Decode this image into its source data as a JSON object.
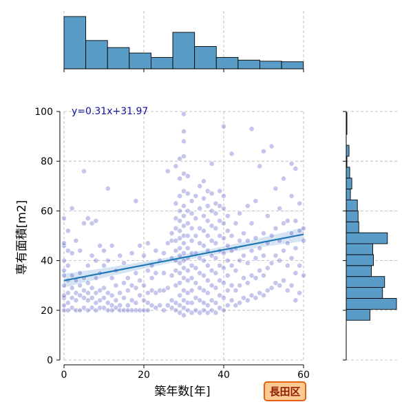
{
  "chart_data": {
    "type": "scatter",
    "regression_label": "y=0.31x+31.97",
    "regression": {
      "slope": 0.31,
      "intercept": 31.97,
      "x_range": [
        0,
        60
      ]
    },
    "xlabel": "築年数[年]",
    "ylabel": "専有面積[m2]",
    "xlim": [
      0,
      60
    ],
    "ylim": [
      0,
      100
    ],
    "x_ticks": [
      "0",
      "20",
      "40",
      "60"
    ],
    "y_ticks": [
      "0",
      "20",
      "40",
      "60",
      "80",
      "100"
    ],
    "grid": true,
    "badge": "長田区",
    "colors": {
      "point": "#4b4fc0",
      "line": "#1f77b4",
      "hist": "#5a9cc8",
      "band": "#c6dbef",
      "badge_fill": "#ffc992",
      "badge_border": "#e06010",
      "badge_text": "#8b1a00",
      "reg_text": "#1010a0"
    },
    "marginal_x": {
      "bin_width": 5.45,
      "counts": [
        96,
        52,
        39,
        29,
        21,
        67,
        41,
        21,
        16,
        14,
        13
      ]
    },
    "marginal_y": {
      "bin_width": 4.4,
      "bin_start": 16,
      "counts": [
        34,
        72,
        52,
        55,
        36,
        39,
        38,
        59,
        18,
        17,
        16,
        6,
        8,
        5,
        1,
        4,
        0,
        1,
        1
      ]
    },
    "points": [
      [
        0,
        20
      ],
      [
        0,
        22
      ],
      [
        0,
        25
      ],
      [
        0,
        26
      ],
      [
        0,
        30
      ],
      [
        0,
        34
      ],
      [
        0,
        36
      ],
      [
        0,
        40
      ],
      [
        0,
        46
      ],
      [
        0,
        47
      ],
      [
        0,
        57
      ],
      [
        1,
        20
      ],
      [
        1,
        23
      ],
      [
        1,
        27
      ],
      [
        1,
        32
      ],
      [
        1,
        38
      ],
      [
        1,
        44
      ],
      [
        1,
        52
      ],
      [
        2,
        21
      ],
      [
        2,
        25
      ],
      [
        2,
        29
      ],
      [
        2,
        34
      ],
      [
        2,
        43
      ],
      [
        2,
        61
      ],
      [
        3,
        20
      ],
      [
        3,
        24
      ],
      [
        3,
        27
      ],
      [
        3,
        32
      ],
      [
        3,
        48
      ],
      [
        4,
        20
      ],
      [
        4,
        26
      ],
      [
        4,
        30
      ],
      [
        4,
        35
      ],
      [
        4,
        44
      ],
      [
        5,
        21
      ],
      [
        5,
        25
      ],
      [
        5,
        28
      ],
      [
        5,
        33
      ],
      [
        5,
        55
      ],
      [
        5,
        76
      ],
      [
        6,
        20
      ],
      [
        6,
        24
      ],
      [
        6,
        27
      ],
      [
        6,
        31
      ],
      [
        6,
        38
      ],
      [
        6,
        57
      ],
      [
        7,
        21
      ],
      [
        7,
        25
      ],
      [
        7,
        29
      ],
      [
        7,
        42
      ],
      [
        7,
        55
      ],
      [
        8,
        20
      ],
      [
        8,
        23
      ],
      [
        8,
        27
      ],
      [
        8,
        33
      ],
      [
        8,
        40
      ],
      [
        8,
        56
      ],
      [
        9,
        21
      ],
      [
        9,
        24
      ],
      [
        9,
        28
      ],
      [
        9,
        35
      ],
      [
        9,
        46
      ],
      [
        10,
        21
      ],
      [
        10,
        25
      ],
      [
        10,
        29
      ],
      [
        10,
        38
      ],
      [
        10,
        44
      ],
      [
        11,
        20
      ],
      [
        11,
        23
      ],
      [
        11,
        27
      ],
      [
        11,
        40
      ],
      [
        11,
        69
      ],
      [
        12,
        20
      ],
      [
        12,
        22
      ],
      [
        12,
        26
      ],
      [
        12,
        33
      ],
      [
        12,
        46
      ],
      [
        13,
        21
      ],
      [
        13,
        24
      ],
      [
        13,
        30
      ],
      [
        13,
        36
      ],
      [
        14,
        20
      ],
      [
        14,
        22
      ],
      [
        14,
        27
      ],
      [
        14,
        42
      ],
      [
        15,
        20
      ],
      [
        15,
        25
      ],
      [
        15,
        31
      ],
      [
        15,
        39
      ],
      [
        16,
        20
      ],
      [
        16,
        22
      ],
      [
        16,
        28
      ],
      [
        16,
        33
      ],
      [
        17,
        20
      ],
      [
        17,
        24
      ],
      [
        17,
        30
      ],
      [
        17,
        43
      ],
      [
        18,
        20
      ],
      [
        18,
        23
      ],
      [
        18,
        29
      ],
      [
        18,
        35
      ],
      [
        18,
        64
      ],
      [
        19,
        20
      ],
      [
        19,
        26
      ],
      [
        19,
        32
      ],
      [
        19,
        46
      ],
      [
        20,
        20
      ],
      [
        20,
        24
      ],
      [
        20,
        30
      ],
      [
        20,
        42
      ],
      [
        21,
        20
      ],
      [
        21,
        23
      ],
      [
        21,
        27
      ],
      [
        21,
        36
      ],
      [
        21,
        47
      ],
      [
        22,
        22
      ],
      [
        22,
        28
      ],
      [
        22,
        33
      ],
      [
        22,
        38
      ],
      [
        23,
        21
      ],
      [
        23,
        27
      ],
      [
        23,
        35
      ],
      [
        23,
        44
      ],
      [
        24,
        22
      ],
      [
        24,
        28
      ],
      [
        24,
        40
      ],
      [
        25,
        20
      ],
      [
        25,
        28
      ],
      [
        25,
        35
      ],
      [
        25,
        43
      ],
      [
        26,
        22
      ],
      [
        26,
        29
      ],
      [
        26,
        47
      ],
      [
        26,
        76
      ],
      [
        27,
        21
      ],
      [
        27,
        24
      ],
      [
        27,
        34
      ],
      [
        27,
        41
      ],
      [
        27,
        48
      ],
      [
        27,
        51
      ],
      [
        28,
        20
      ],
      [
        28,
        23
      ],
      [
        28,
        30
      ],
      [
        28,
        36
      ],
      [
        28,
        40
      ],
      [
        28,
        44
      ],
      [
        28,
        48
      ],
      [
        28,
        53
      ],
      [
        28,
        57
      ],
      [
        28,
        63
      ],
      [
        28,
        78
      ],
      [
        29,
        19
      ],
      [
        29,
        22
      ],
      [
        29,
        26
      ],
      [
        29,
        31
      ],
      [
        29,
        35
      ],
      [
        29,
        39
      ],
      [
        29,
        42
      ],
      [
        29,
        45
      ],
      [
        29,
        49
      ],
      [
        29,
        52
      ],
      [
        29,
        56
      ],
      [
        29,
        60
      ],
      [
        29,
        66
      ],
      [
        29,
        73
      ],
      [
        29,
        81
      ],
      [
        30,
        18
      ],
      [
        30,
        21
      ],
      [
        30,
        24
      ],
      [
        30,
        28
      ],
      [
        30,
        33
      ],
      [
        30,
        37
      ],
      [
        30,
        40
      ],
      [
        30,
        43
      ],
      [
        30,
        47
      ],
      [
        30,
        50
      ],
      [
        30,
        54
      ],
      [
        30,
        58
      ],
      [
        30,
        62
      ],
      [
        30,
        68
      ],
      [
        30,
        75
      ],
      [
        30,
        82
      ],
      [
        30,
        88
      ],
      [
        30,
        92
      ],
      [
        30,
        99
      ],
      [
        31,
        20
      ],
      [
        31,
        23
      ],
      [
        31,
        27
      ],
      [
        31,
        32
      ],
      [
        31,
        36
      ],
      [
        31,
        41
      ],
      [
        31,
        45
      ],
      [
        31,
        50
      ],
      [
        31,
        55
      ],
      [
        31,
        60
      ],
      [
        31,
        67
      ],
      [
        31,
        74
      ],
      [
        32,
        19
      ],
      [
        32,
        23
      ],
      [
        32,
        28
      ],
      [
        32,
        33
      ],
      [
        32,
        38
      ],
      [
        32,
        43
      ],
      [
        32,
        48
      ],
      [
        32,
        53
      ],
      [
        32,
        59
      ],
      [
        32,
        64
      ],
      [
        33,
        20
      ],
      [
        33,
        25
      ],
      [
        33,
        31
      ],
      [
        33,
        37
      ],
      [
        33,
        43
      ],
      [
        33,
        50
      ],
      [
        33,
        57
      ],
      [
        33,
        66
      ],
      [
        34,
        19
      ],
      [
        34,
        24
      ],
      [
        34,
        29
      ],
      [
        34,
        35
      ],
      [
        34,
        41
      ],
      [
        34,
        47
      ],
      [
        34,
        53
      ],
      [
        34,
        61
      ],
      [
        34,
        70
      ],
      [
        35,
        20
      ],
      [
        35,
        23
      ],
      [
        35,
        28
      ],
      [
        35,
        34
      ],
      [
        35,
        40
      ],
      [
        35,
        46
      ],
      [
        35,
        52
      ],
      [
        35,
        58
      ],
      [
        35,
        65
      ],
      [
        35,
        72
      ],
      [
        36,
        19
      ],
      [
        36,
        22
      ],
      [
        36,
        27
      ],
      [
        36,
        32
      ],
      [
        36,
        38
      ],
      [
        36,
        44
      ],
      [
        36,
        50
      ],
      [
        36,
        56
      ],
      [
        36,
        62
      ],
      [
        36,
        68
      ],
      [
        37,
        20
      ],
      [
        37,
        24
      ],
      [
        37,
        30
      ],
      [
        37,
        36
      ],
      [
        37,
        42
      ],
      [
        37,
        48
      ],
      [
        37,
        54
      ],
      [
        37,
        60
      ],
      [
        37,
        67
      ],
      [
        37,
        79
      ],
      [
        38,
        19
      ],
      [
        38,
        23
      ],
      [
        38,
        29
      ],
      [
        38,
        35
      ],
      [
        38,
        41
      ],
      [
        38,
        47
      ],
      [
        38,
        53
      ],
      [
        38,
        59
      ],
      [
        38,
        63
      ],
      [
        39,
        21
      ],
      [
        39,
        26
      ],
      [
        39,
        32
      ],
      [
        39,
        38
      ],
      [
        39,
        44
      ],
      [
        39,
        50
      ],
      [
        39,
        56
      ],
      [
        39,
        62
      ],
      [
        39,
        68
      ],
      [
        40,
        20
      ],
      [
        40,
        25
      ],
      [
        40,
        31
      ],
      [
        40,
        37
      ],
      [
        40,
        43
      ],
      [
        40,
        49
      ],
      [
        40,
        55
      ],
      [
        40,
        61
      ],
      [
        40,
        66
      ],
      [
        40,
        94
      ],
      [
        41,
        22
      ],
      [
        41,
        28
      ],
      [
        41,
        34
      ],
      [
        41,
        40
      ],
      [
        41,
        46
      ],
      [
        41,
        52
      ],
      [
        41,
        58
      ],
      [
        42,
        24
      ],
      [
        42,
        30
      ],
      [
        42,
        38
      ],
      [
        42,
        44
      ],
      [
        42,
        50
      ],
      [
        42,
        83
      ],
      [
        43,
        22
      ],
      [
        43,
        28
      ],
      [
        43,
        36
      ],
      [
        43,
        45
      ],
      [
        43,
        55
      ],
      [
        44,
        23
      ],
      [
        44,
        30
      ],
      [
        44,
        40
      ],
      [
        44,
        48
      ],
      [
        44,
        59
      ],
      [
        45,
        25
      ],
      [
        45,
        33
      ],
      [
        45,
        42
      ],
      [
        45,
        51
      ],
      [
        46,
        24
      ],
      [
        46,
        31
      ],
      [
        46,
        39
      ],
      [
        46,
        48
      ],
      [
        46,
        62
      ],
      [
        47,
        26
      ],
      [
        47,
        34
      ],
      [
        47,
        44
      ],
      [
        47,
        55
      ],
      [
        47,
        93
      ],
      [
        48,
        25
      ],
      [
        48,
        33
      ],
      [
        48,
        41
      ],
      [
        48,
        49
      ],
      [
        48,
        64
      ],
      [
        49,
        27
      ],
      [
        49,
        36
      ],
      [
        49,
        45
      ],
      [
        49,
        78
      ],
      [
        50,
        26
      ],
      [
        50,
        34
      ],
      [
        50,
        42
      ],
      [
        50,
        51
      ],
      [
        50,
        84
      ],
      [
        51,
        28
      ],
      [
        51,
        37
      ],
      [
        51,
        47
      ],
      [
        51,
        58
      ],
      [
        52,
        29
      ],
      [
        52,
        39
      ],
      [
        52,
        50
      ],
      [
        52,
        86
      ],
      [
        53,
        31
      ],
      [
        53,
        42
      ],
      [
        53,
        53
      ],
      [
        53,
        69
      ],
      [
        54,
        30
      ],
      [
        54,
        40
      ],
      [
        54,
        48
      ],
      [
        54,
        61
      ],
      [
        55,
        32
      ],
      [
        55,
        44
      ],
      [
        55,
        55
      ],
      [
        55,
        73
      ],
      [
        56,
        28
      ],
      [
        56,
        38
      ],
      [
        56,
        47
      ],
      [
        56,
        56
      ],
      [
        57,
        30
      ],
      [
        57,
        41
      ],
      [
        57,
        51
      ],
      [
        57,
        66
      ],
      [
        57,
        79
      ],
      [
        58,
        24
      ],
      [
        58,
        35
      ],
      [
        58,
        45
      ],
      [
        58,
        56
      ],
      [
        58,
        77
      ],
      [
        59,
        27
      ],
      [
        59,
        38
      ],
      [
        59,
        52
      ],
      [
        59,
        63
      ],
      [
        60,
        34
      ],
      [
        60,
        48
      ],
      [
        60,
        53
      ]
    ]
  }
}
